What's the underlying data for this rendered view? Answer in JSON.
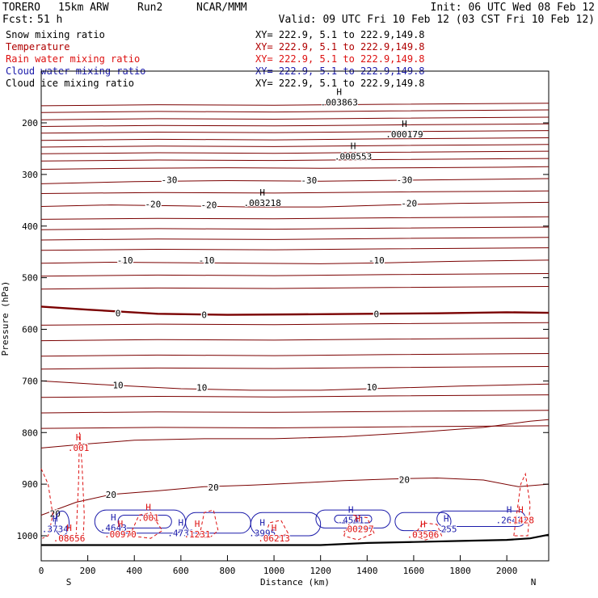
{
  "header": {
    "model": "TORERO",
    "resolution": "15km ARW",
    "run": "Run2",
    "org": "NCAR/MMM",
    "init": "Init: 06 UTC Wed 08 Feb 12",
    "fcst_label": "Fcst:",
    "fcst_value": "51 h",
    "valid": "Valid: 09 UTC Fri 10 Feb 12 (03 CST Fri 10 Feb 12)"
  },
  "legend": {
    "fields": [
      {
        "name": "Snow mixing ratio",
        "color": "#000000",
        "xy": "XY= 222.9,  5.1 to 222.9,149.8"
      },
      {
        "name": "Temperature",
        "color": "#b00000",
        "xy": "XY= 222.9,  5.1 to 222.9,149.8"
      },
      {
        "name": "Rain water mixing ratio",
        "color": "#dd1111",
        "xy": "XY= 222.9,  5.1 to 222.9,149.8"
      },
      {
        "name": "Cloud water mixing ratio",
        "color": "#1a1aaa",
        "xy": "XY= 222.9,  5.1 to 222.9,149.8"
      },
      {
        "name": "Cloud ice mixing ratio",
        "color": "#000000",
        "xy": "XY= 222.9,  5.1 to 222.9,149.8"
      }
    ]
  },
  "colors": {
    "temperature": "#7a0000",
    "rain": "#dd1111",
    "cloud_water": "#1a1aaa",
    "snow": "#000000",
    "terrain": "#000000"
  },
  "chart_data": {
    "type": "cross-section contour",
    "xlabel": "Distance (km)",
    "ylabel": "Pressure (hPa)",
    "xlim": [
      0,
      2180
    ],
    "ylim": [
      1045,
      140
    ],
    "x_ticks": [
      0,
      200,
      400,
      600,
      800,
      1000,
      1200,
      1400,
      1600,
      1800,
      2000
    ],
    "y_ticks": [
      200,
      300,
      400,
      500,
      600,
      700,
      800,
      900,
      1000
    ],
    "endpoint_left": "S",
    "endpoint_right": "N",
    "temperature_contours": [
      {
        "level": -30,
        "points": [
          [
            0,
            290
          ],
          [
            400,
            288
          ],
          [
            800,
            287
          ],
          [
            1200,
            288
          ],
          [
            1600,
            287
          ],
          [
            2000,
            286
          ],
          [
            2180,
            285
          ]
        ]
      },
      {
        "level": -30,
        "points": [
          [
            0,
            318
          ],
          [
            400,
            314
          ],
          [
            800,
            312
          ],
          [
            1200,
            313
          ],
          [
            1600,
            311
          ],
          [
            2000,
            309
          ],
          [
            2180,
            308
          ]
        ]
      },
      {
        "level": -20,
        "points": [
          [
            0,
            362
          ],
          [
            300,
            359
          ],
          [
            600,
            361
          ],
          [
            900,
            363
          ],
          [
            1200,
            363
          ],
          [
            1500,
            359
          ],
          [
            1800,
            356
          ],
          [
            2180,
            354
          ]
        ]
      },
      {
        "level": -10,
        "points": [
          [
            0,
            472
          ],
          [
            300,
            470
          ],
          [
            600,
            471
          ],
          [
            900,
            472
          ],
          [
            1200,
            473
          ],
          [
            1500,
            471
          ],
          [
            1800,
            468
          ],
          [
            2180,
            466
          ]
        ]
      },
      {
        "level": 0,
        "points": [
          [
            0,
            556
          ],
          [
            200,
            562
          ],
          [
            500,
            570
          ],
          [
            800,
            572
          ],
          [
            1100,
            571
          ],
          [
            1400,
            570
          ],
          [
            1700,
            569
          ],
          [
            2000,
            567
          ],
          [
            2180,
            568
          ]
        ]
      },
      {
        "level": 10,
        "points": [
          [
            0,
            700
          ],
          [
            300,
            708
          ],
          [
            600,
            715
          ],
          [
            900,
            718
          ],
          [
            1200,
            718
          ],
          [
            1500,
            714
          ],
          [
            1800,
            710
          ],
          [
            2180,
            706
          ]
        ]
      },
      {
        "level": 20,
        "points": [
          [
            0,
            960
          ],
          [
            150,
            935
          ],
          [
            300,
            920
          ],
          [
            500,
            913
          ],
          [
            700,
            905
          ],
          [
            900,
            902
          ],
          [
            1100,
            898
          ],
          [
            1300,
            893
          ],
          [
            1500,
            890
          ],
          [
            1700,
            888
          ],
          [
            1900,
            892
          ],
          [
            2050,
            905
          ],
          [
            2180,
            900
          ]
        ]
      }
    ],
    "temperature_labels": [
      {
        "text": "-30",
        "x": 550,
        "p": 310
      },
      {
        "text": "-30",
        "x": 1150,
        "p": 311
      },
      {
        "text": "-30",
        "x": 1560,
        "p": 310
      },
      {
        "text": "-20",
        "x": 480,
        "p": 357
      },
      {
        "text": "-20",
        "x": 720,
        "p": 359
      },
      {
        "text": "-20",
        "x": 1580,
        "p": 356
      },
      {
        "text": "-10",
        "x": 360,
        "p": 466
      },
      {
        "text": "-10",
        "x": 710,
        "p": 466
      },
      {
        "text": "-10",
        "x": 1440,
        "p": 466
      },
      {
        "text": "0",
        "x": 330,
        "p": 569
      },
      {
        "text": "0",
        "x": 700,
        "p": 572
      },
      {
        "text": "0",
        "x": 1440,
        "p": 570
      },
      {
        "text": "10",
        "x": 330,
        "p": 708
      },
      {
        "text": "10",
        "x": 690,
        "p": 713
      },
      {
        "text": "10",
        "x": 1420,
        "p": 712
      },
      {
        "text": "20",
        "x": 740,
        "p": 906
      },
      {
        "text": "20",
        "x": 1560,
        "p": 891
      },
      {
        "text": "20",
        "x": 300,
        "p": 920
      },
      {
        "text": "20",
        "x": 60,
        "p": 957
      }
    ],
    "snow_maxima": [
      {
        "mark": "H",
        "value": ".003863",
        "x": 1280,
        "p": 155
      },
      {
        "mark": "H",
        "value": ".000179",
        "x": 1560,
        "p": 217
      },
      {
        "mark": "H",
        "value": ".000553",
        "x": 1340,
        "p": 260
      },
      {
        "mark": "H",
        "value": ".003218",
        "x": 950,
        "p": 350
      }
    ],
    "cloud_water_maxima": [
      {
        "mark": "H",
        "value": ".3734",
        "x": 60,
        "p": 982
      },
      {
        "mark": "H",
        "value": ".4643",
        "x": 310,
        "p": 980
      },
      {
        "mark": "H",
        "value": ".4731",
        "x": 600,
        "p": 990
      },
      {
        "mark": "H",
        "value": ".3995",
        "x": 950,
        "p": 990
      },
      {
        "mark": "H",
        "value": ".4541",
        "x": 1330,
        "p": 965
      },
      {
        "mark": "H",
        "value": ".255",
        "x": 1740,
        "p": 982
      },
      {
        "mark": "H",
        "value": ".2642",
        "x": 2010,
        "p": 965
      }
    ],
    "rain_maxima": [
      {
        "mark": "H",
        "value": ".001",
        "x": 160,
        "p": 825
      },
      {
        "mark": "H",
        "value": ".08656",
        "x": 120,
        "p": 1000
      },
      {
        "mark": "H",
        "value": ".00970",
        "x": 340,
        "p": 992
      },
      {
        "mark": "H",
        "value": ".001",
        "x": 460,
        "p": 960
      },
      {
        "mark": "H",
        "value": ".1231",
        "x": 670,
        "p": 992
      },
      {
        "mark": "H",
        "value": ".06213",
        "x": 1000,
        "p": 1000
      },
      {
        "mark": "H",
        "value": ".00297",
        "x": 1360,
        "p": 982
      },
      {
        "mark": "H",
        "value": ".03506",
        "x": 1640,
        "p": 993
      },
      {
        "mark": "H",
        "value": ".1428",
        "x": 2060,
        "p": 965
      }
    ],
    "terrain": [
      [
        0,
        1018
      ],
      [
        1200,
        1018
      ],
      [
        1400,
        1014
      ],
      [
        1600,
        1012
      ],
      [
        1800,
        1010
      ],
      [
        2000,
        1008
      ],
      [
        2100,
        1005
      ],
      [
        2180,
        998
      ]
    ]
  }
}
